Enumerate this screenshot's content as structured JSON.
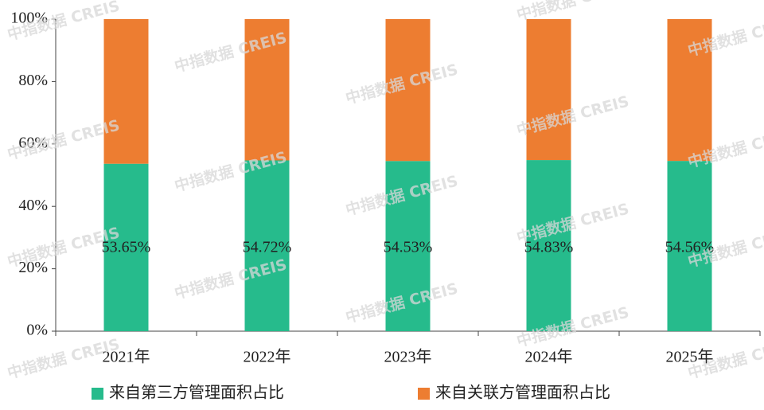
{
  "chart_data": {
    "type": "stacked_bar",
    "watermark": "中指数据 CREIS",
    "categories": [
      "2021年",
      "2022年",
      "2023年",
      "2024年",
      "2025年"
    ],
    "series": [
      {
        "name": "来自第三方管理面积占比",
        "color": "#26bb8c",
        "values": [
          53.65,
          54.72,
          54.53,
          54.83,
          54.56
        ],
        "value_labels": [
          "53.65%",
          "54.72%",
          "54.53%",
          "54.83%",
          "54.56%"
        ]
      },
      {
        "name": "来自关联方管理面积占比",
        "color": "#ed7d31",
        "values": [
          46.35,
          45.28,
          45.47,
          45.17,
          45.44
        ]
      }
    ],
    "ylim": [
      0,
      100
    ],
    "yticks": [
      {
        "value": 0,
        "label": "0%"
      },
      {
        "value": 20,
        "label": "20%"
      },
      {
        "value": 40,
        "label": "40%"
      },
      {
        "value": 60,
        "label": "60%"
      },
      {
        "value": 80,
        "label": "80%"
      },
      {
        "value": 100,
        "label": "100%"
      }
    ],
    "legend": "bottom"
  }
}
